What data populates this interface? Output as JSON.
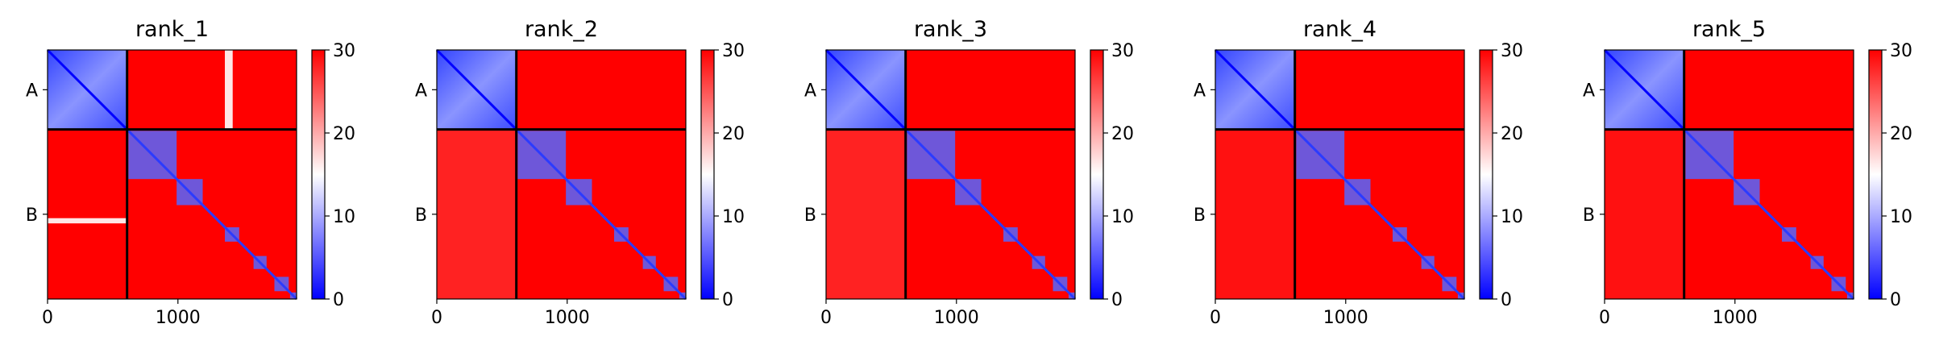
{
  "figure": {
    "panel_titles": [
      "rank_1",
      "rank_2",
      "rank_3",
      "rank_4",
      "rank_5"
    ]
  },
  "chart_data": [
    {
      "type": "heatmap",
      "title": "rank_1",
      "xlabel": "",
      "ylabel": "",
      "x_ticks": [
        0,
        1000
      ],
      "y_ticks": [
        "A",
        "B"
      ],
      "xlim": [
        0,
        1910
      ],
      "chain_boundary": 610,
      "chains": [
        {
          "name": "A",
          "length": 610
        },
        {
          "name": "B",
          "length": 1300
        }
      ],
      "colorbar": {
        "min": 0,
        "max": 30,
        "ticks": [
          0,
          10,
          20,
          30
        ],
        "colormap": "bwr",
        "colors": [
          "#0000ff",
          "#ffffff",
          "#ff0000"
        ]
      },
      "values": {
        "AA": 5,
        "BB": 30,
        "AB": 30,
        "BA": 30,
        "AB_light_band_x_range": [
          1360,
          1420
        ],
        "BA_light_band_y_range": [
          1290,
          1330
        ],
        "B_diagonal_blocks": [
          [
            620,
            990
          ],
          [
            990,
            1190
          ],
          [
            1360,
            1470
          ],
          [
            1580,
            1680
          ],
          [
            1740,
            1850
          ],
          [
            1860,
            1910
          ]
        ]
      }
    },
    {
      "type": "heatmap",
      "title": "rank_2",
      "xlabel": "",
      "ylabel": "",
      "x_ticks": [
        0,
        1000
      ],
      "y_ticks": [
        "A",
        "B"
      ],
      "xlim": [
        0,
        1910
      ],
      "chain_boundary": 610,
      "chains": [
        {
          "name": "A",
          "length": 610
        },
        {
          "name": "B",
          "length": 1300
        }
      ],
      "colorbar": {
        "min": 0,
        "max": 30,
        "ticks": [
          0,
          10,
          20,
          30
        ],
        "colormap": "bwr",
        "colors": [
          "#0000ff",
          "#ffffff",
          "#ff0000"
        ]
      },
      "values": {
        "AA": 5,
        "BB": 30,
        "AB": 30,
        "BA": 28,
        "B_diagonal_blocks": [
          [
            620,
            990
          ],
          [
            990,
            1190
          ],
          [
            1360,
            1470
          ],
          [
            1580,
            1680
          ],
          [
            1740,
            1850
          ],
          [
            1860,
            1910
          ]
        ]
      }
    },
    {
      "type": "heatmap",
      "title": "rank_3",
      "xlabel": "",
      "ylabel": "",
      "x_ticks": [
        0,
        1000
      ],
      "y_ticks": [
        "A",
        "B"
      ],
      "xlim": [
        0,
        1910
      ],
      "chain_boundary": 610,
      "chains": [
        {
          "name": "A",
          "length": 610
        },
        {
          "name": "B",
          "length": 1300
        }
      ],
      "colorbar": {
        "min": 0,
        "max": 30,
        "ticks": [
          0,
          10,
          20,
          30
        ],
        "colormap": "bwr",
        "colors": [
          "#0000ff",
          "#ffffff",
          "#ff0000"
        ]
      },
      "values": {
        "AA": 5,
        "BB": 30,
        "AB": 30,
        "BA": 28,
        "B_diagonal_blocks": [
          [
            620,
            990
          ],
          [
            990,
            1190
          ],
          [
            1360,
            1470
          ],
          [
            1580,
            1680
          ],
          [
            1740,
            1850
          ],
          [
            1860,
            1910
          ]
        ]
      }
    },
    {
      "type": "heatmap",
      "title": "rank_4",
      "xlabel": "",
      "ylabel": "",
      "x_ticks": [
        0,
        1000
      ],
      "y_ticks": [
        "A",
        "B"
      ],
      "xlim": [
        0,
        1910
      ],
      "chain_boundary": 610,
      "chains": [
        {
          "name": "A",
          "length": 610
        },
        {
          "name": "B",
          "length": 1300
        }
      ],
      "colorbar": {
        "min": 0,
        "max": 30,
        "ticks": [
          0,
          10,
          20,
          30
        ],
        "colormap": "bwr",
        "colors": [
          "#0000ff",
          "#ffffff",
          "#ff0000"
        ]
      },
      "values": {
        "AA": 5,
        "BB": 30,
        "AB": 30,
        "BA": 29,
        "B_diagonal_blocks": [
          [
            620,
            990
          ],
          [
            990,
            1190
          ],
          [
            1360,
            1470
          ],
          [
            1580,
            1680
          ],
          [
            1740,
            1850
          ],
          [
            1860,
            1910
          ]
        ]
      }
    },
    {
      "type": "heatmap",
      "title": "rank_5",
      "xlabel": "",
      "ylabel": "",
      "x_ticks": [
        0,
        1000
      ],
      "y_ticks": [
        "A",
        "B"
      ],
      "xlim": [
        0,
        1910
      ],
      "chain_boundary": 610,
      "chains": [
        {
          "name": "A",
          "length": 610
        },
        {
          "name": "B",
          "length": 1300
        }
      ],
      "colorbar": {
        "min": 0,
        "max": 30,
        "ticks": [
          0,
          10,
          20,
          30
        ],
        "colormap": "bwr",
        "colors": [
          "#0000ff",
          "#ffffff",
          "#ff0000"
        ]
      },
      "values": {
        "AA": 5,
        "BB": 30,
        "AB": 30,
        "BA": 29,
        "B_diagonal_blocks": [
          [
            620,
            990
          ],
          [
            990,
            1190
          ],
          [
            1360,
            1470
          ],
          [
            1580,
            1680
          ],
          [
            1740,
            1850
          ],
          [
            1860,
            1910
          ]
        ]
      }
    }
  ]
}
